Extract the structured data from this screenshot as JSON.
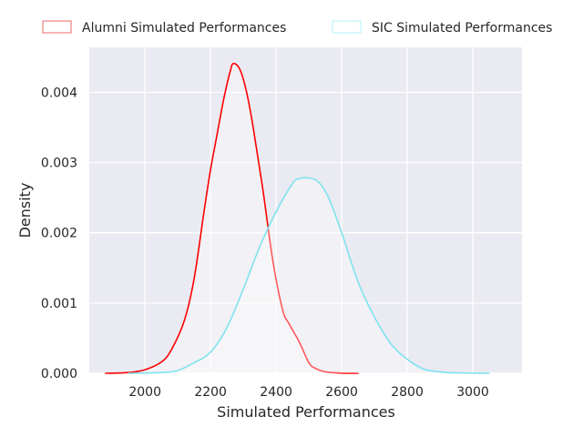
{
  "chart_data": {
    "type": "area",
    "xlabel": "Simulated Performances",
    "ylabel": "Density",
    "xlim": [
      1830,
      3150
    ],
    "ylim": [
      0,
      0.00464
    ],
    "x_ticks": [
      2000,
      2200,
      2400,
      2600,
      2800,
      3000
    ],
    "y_ticks": [
      0,
      0.001,
      0.002,
      0.003,
      0.004
    ],
    "y_tick_labels": [
      "0.000",
      "0.001",
      "0.002",
      "0.003",
      "0.004"
    ],
    "grid": true,
    "legend_position": "top, above plot",
    "background": "#eaeaf2",
    "series": [
      {
        "name": "Alumni Simulated Performances",
        "color": "#ff0000",
        "legend_color": "#f08080",
        "x": [
          1880,
          1950,
          2000,
          2050,
          2080,
          2120,
          2150,
          2180,
          2200,
          2220,
          2240,
          2260,
          2270,
          2290,
          2310,
          2330,
          2360,
          2390,
          2420,
          2440,
          2470,
          2500,
          2520,
          2550,
          2600,
          2650
        ],
        "values": [
          0,
          1e-05,
          5e-05,
          0.00016,
          0.00033,
          0.00075,
          0.00135,
          0.0023,
          0.0029,
          0.0034,
          0.0039,
          0.0043,
          0.00441,
          0.00432,
          0.004,
          0.0035,
          0.0026,
          0.0016,
          0.0009,
          0.0007,
          0.00045,
          0.00015,
          7e-05,
          2e-05,
          3e-06,
          0
        ]
      },
      {
        "name": "SIC Simulated Performances",
        "color": "#7fe3ef",
        "legend_color": "#bff2f8",
        "x": [
          1950,
          2050,
          2100,
          2150,
          2200,
          2250,
          2300,
          2350,
          2400,
          2450,
          2470,
          2500,
          2530,
          2560,
          2600,
          2650,
          2700,
          2750,
          2800,
          2850,
          2900,
          2950,
          3050
        ],
        "values": [
          0,
          1e-05,
          4e-05,
          0.00015,
          0.0003,
          0.00065,
          0.0012,
          0.0018,
          0.0023,
          0.0027,
          0.00277,
          0.00278,
          0.00272,
          0.0025,
          0.002,
          0.0013,
          0.0008,
          0.00042,
          0.0002,
          6e-05,
          2e-05,
          5e-06,
          0
        ]
      }
    ]
  }
}
